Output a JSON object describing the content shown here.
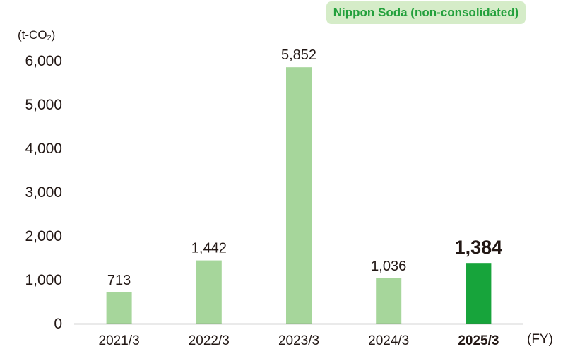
{
  "badge": "Nippon Soda (non-consolidated)",
  "unit_label": {
    "prefix": "(t-CO",
    "subscript": "2",
    "suffix": ")"
  },
  "x_unit_label": "(FY)",
  "colors": {
    "bar": "#a6d69b",
    "highlight_bar": "#17a43b",
    "badge_bg": "#d5ecc8",
    "badge_text": "#23a03c",
    "text": "#231815",
    "axis": "#595757"
  },
  "chart_data": {
    "type": "bar",
    "title": "",
    "xlabel": "(FY)",
    "ylabel": "(t-CO2)",
    "categories": [
      "2021/3",
      "2022/3",
      "2023/3",
      "2024/3",
      "2025/3"
    ],
    "values": [
      713,
      1442,
      5852,
      1036,
      1384
    ],
    "value_labels": [
      "713",
      "1,442",
      "5,852",
      "1,036",
      "1,384"
    ],
    "highlight_index": 4,
    "ylim": [
      0,
      6000
    ],
    "yticks": [
      0,
      1000,
      2000,
      3000,
      4000,
      5000,
      6000
    ],
    "ytick_labels": [
      "0",
      "1,000",
      "2,000",
      "3,000",
      "4,000",
      "5,000",
      "6,000"
    ],
    "grid": false,
    "legend": "none"
  }
}
